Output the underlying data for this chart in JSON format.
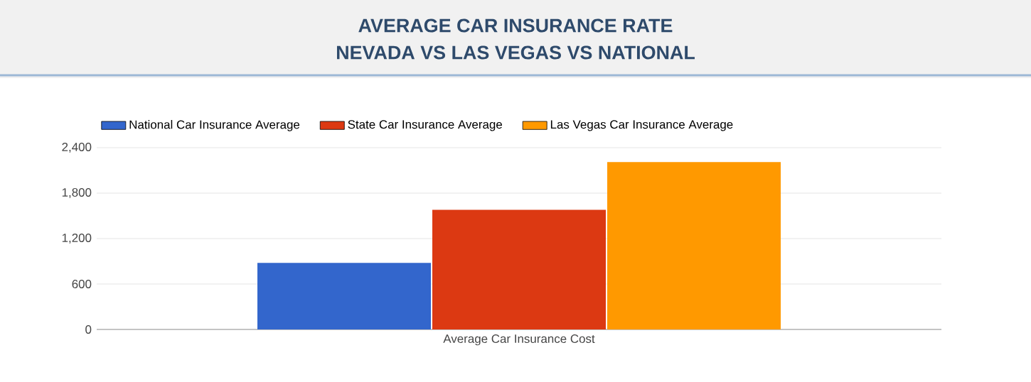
{
  "chart_data": {
    "type": "bar",
    "title": "AVERAGE CAR INSURANCE RATE",
    "subtitle": "NEVADA VS LAS VEGAS VS NATIONAL",
    "categories": [
      "Average Car Insurance Cost"
    ],
    "series": [
      {
        "name": "National Car Insurance Average",
        "color": "#3366cc",
        "values": [
          880
        ]
      },
      {
        "name": "State Car Insurance Average",
        "color": "#dc3912",
        "values": [
          1580
        ]
      },
      {
        "name": "Las Vegas Car Insurance Average",
        "color": "#ff9900",
        "values": [
          2210
        ]
      }
    ],
    "ylim": [
      0,
      2400
    ],
    "yticks": [
      0,
      600,
      {
        "value": 1200,
        "label": "1,200"
      },
      {
        "value": 1800,
        "label": "1,800"
      },
      {
        "value": 2400,
        "label": "2,400"
      }
    ],
    "grid": "y",
    "legend": "top"
  }
}
